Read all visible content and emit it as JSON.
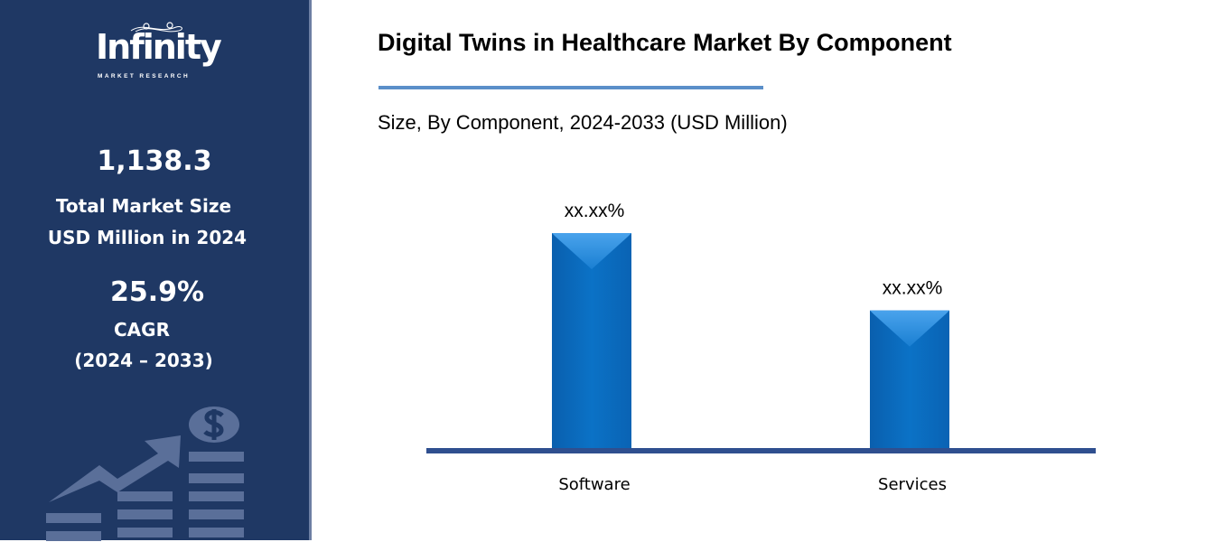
{
  "brand": {
    "name": "Infinity",
    "tagline": "MARKET RESEARCH"
  },
  "sidebar": {
    "market_size": "1,138.3",
    "market_size_label_1": "Total Market Size",
    "market_size_label_2": "USD Million in 2024",
    "cagr": "25.9%",
    "cagr_label": "CAGR",
    "cagr_period": "(2024 – 2033)",
    "illustration": "growth-chart-dollar-icon"
  },
  "colors": {
    "sidebar": "#1f3864",
    "bar": "#0b6fc2",
    "axis": "#2f4f8f",
    "accent_line": "#5b8fc9"
  },
  "chart_data": {
    "type": "bar",
    "title": "Digital Twins in Healthcare Market By Component",
    "subtitle": "Size, By Component, 2024-2033 (USD Million)",
    "categories": [
      "Software",
      "Services"
    ],
    "values": [
      100,
      64
    ],
    "data_labels": [
      "xx.xx%",
      "xx.xx%"
    ],
    "xlabel": "",
    "ylabel": "",
    "grid": false
  }
}
